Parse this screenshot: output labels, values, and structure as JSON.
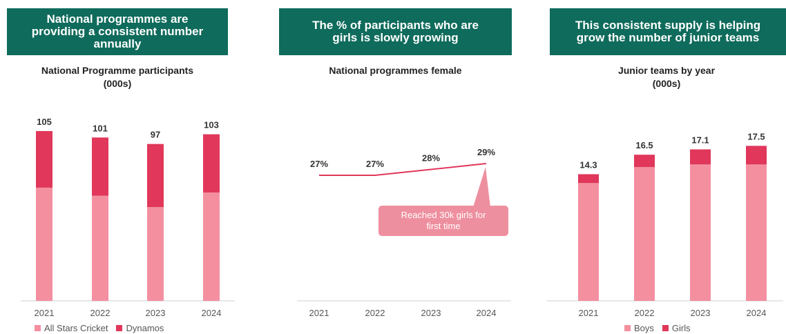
{
  "colors": {
    "banner": "#0f6b5c",
    "light_pink": "#f48fa0",
    "dark_pink": "#e0375a",
    "line": "#e0375a",
    "callout": "#ee8f9f"
  },
  "panels": [
    {
      "banner": "National programmes are\nproviding a consistent number\nannually"
    },
    {
      "banner": "The % of participants who are\ngirls is slowly growing"
    },
    {
      "banner": "This consistent supply is helping\ngrow the number of junior teams"
    }
  ],
  "chart_data": [
    {
      "type": "bar",
      "stacked": true,
      "title": "National Programme participants\n(000s)",
      "categories": [
        "2021",
        "2022",
        "2023",
        "2024"
      ],
      "series": [
        {
          "name": "All Stars Cricket",
          "values": [
            70,
            65,
            58,
            67
          ]
        },
        {
          "name": "Dynamos",
          "values": [
            35,
            36,
            39,
            36
          ]
        }
      ],
      "totals": [
        105,
        101,
        97,
        103
      ],
      "total_labels": [
        "105",
        "101",
        "97",
        "103"
      ],
      "ylim": [
        0,
        125
      ],
      "legend": "bottom-left"
    },
    {
      "type": "line",
      "title": "National programmes female",
      "categories": [
        "2021",
        "2022",
        "2023",
        "2024"
      ],
      "values": [
        27,
        27,
        28,
        29
      ],
      "value_labels": [
        "27%",
        "27%",
        "28%",
        "29%"
      ],
      "annotation": "Reached 30k girls for\nfirst time"
    },
    {
      "type": "bar",
      "stacked": true,
      "title": "Junior teams by year\n(000s)",
      "categories": [
        "2021",
        "2022",
        "2023",
        "2024"
      ],
      "series": [
        {
          "name": "Boys",
          "values": [
            13.3,
            15.1,
            15.4,
            15.4
          ]
        },
        {
          "name": "Girls",
          "values": [
            1.0,
            1.4,
            1.7,
            2.1
          ]
        }
      ],
      "totals": [
        14.3,
        16.5,
        17.1,
        17.5
      ],
      "total_labels": [
        "14.3",
        "16.5",
        "17.1",
        "17.5"
      ],
      "ylim": [
        0,
        21.5
      ],
      "legend": "bottom-center"
    }
  ]
}
